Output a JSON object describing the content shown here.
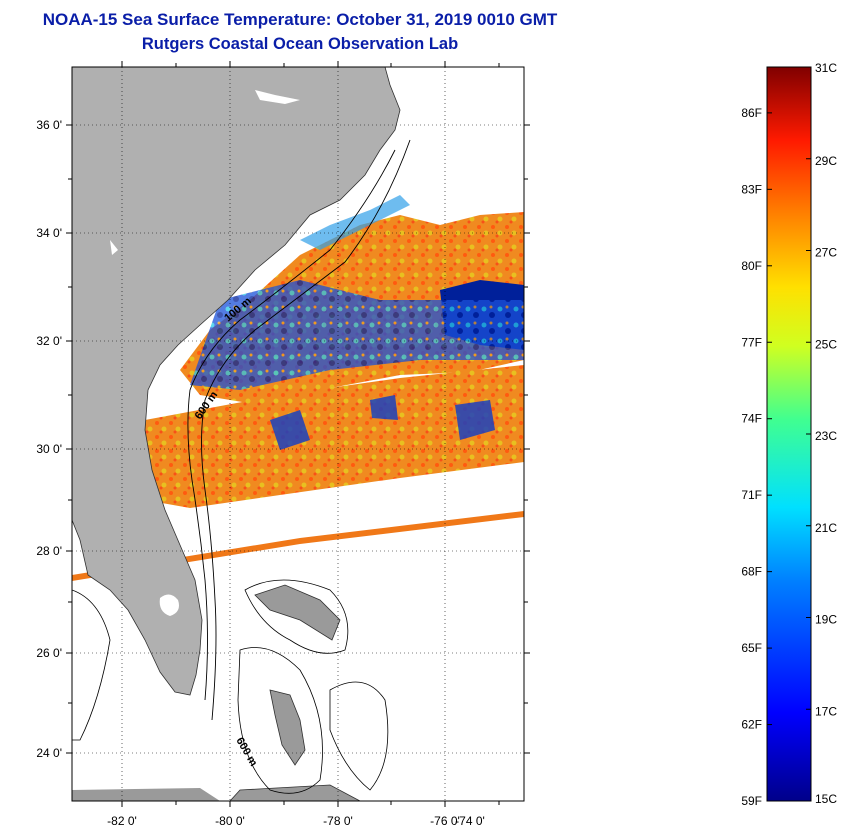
{
  "header": {
    "title": "NOAA-15 Sea Surface Temperature:  October 31, 2019 0010 GMT",
    "subtitle": "Rutgers Coastal Ocean Observation Lab"
  },
  "map": {
    "lat_ticks": [
      "36 0'",
      "34 0'",
      "32 0'",
      "30 0'",
      "28 0'",
      "26 0'",
      "24 0'"
    ],
    "lon_ticks": [
      "-82 0'",
      "-80 0'",
      "-78 0'",
      "-76 0'",
      "-74 0'"
    ],
    "contour_labels": [
      "100 m",
      "600 m",
      "600 m"
    ],
    "colors": {
      "land": "#b0b0b0",
      "ocean_cold": "#00209a",
      "ocean_warm": "#f07818",
      "no_data": "#ffffff"
    }
  },
  "colorbar": {
    "celsius": [
      "31C",
      "29C",
      "27C",
      "25C",
      "23C",
      "21C",
      "19C",
      "17C",
      "15C"
    ],
    "fahrenheit": [
      "86F",
      "83F",
      "80F",
      "77F",
      "74F",
      "71F",
      "68F",
      "65F",
      "62F",
      "59F"
    ],
    "range_c": [
      15,
      31
    ]
  }
}
